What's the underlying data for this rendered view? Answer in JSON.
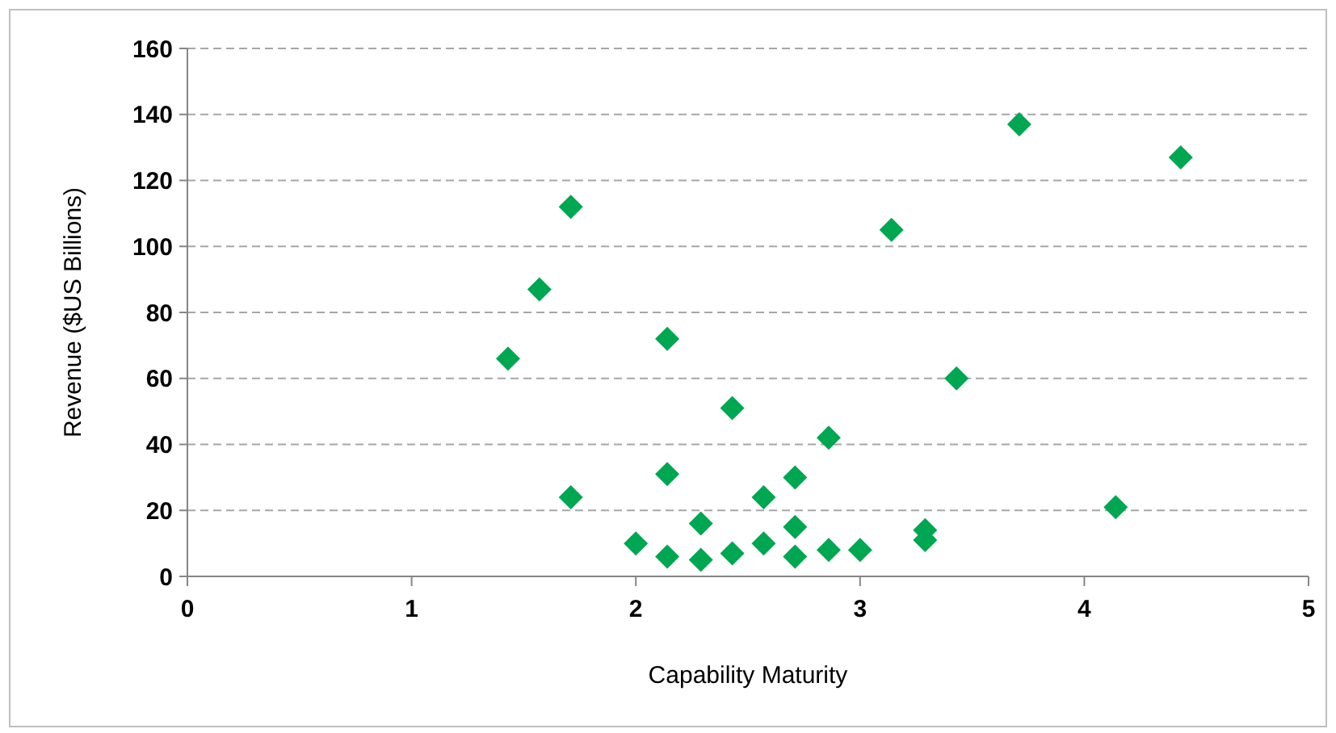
{
  "chart_data": {
    "type": "scatter",
    "xlabel": "Capability Maturity",
    "ylabel": "Revenue ($US Billions)",
    "xlim": [
      0,
      5
    ],
    "xticks": [
      0,
      1,
      2,
      3,
      4,
      5
    ],
    "ylim": [
      0,
      160
    ],
    "yticks": [
      0,
      20,
      40,
      60,
      80,
      100,
      120,
      140,
      160
    ],
    "grid": "y",
    "marker": "diamond",
    "series": [
      {
        "color": "#00a651",
        "x": [
          1.43,
          1.57,
          1.71,
          1.71,
          2.0,
          2.14,
          2.14,
          2.14,
          2.29,
          2.29,
          2.43,
          2.43,
          2.57,
          2.57,
          2.71,
          2.71,
          2.71,
          2.86,
          2.86,
          3.0,
          3.14,
          3.29,
          3.29,
          3.43,
          3.71,
          4.14,
          4.43
        ],
        "values": [
          66,
          87,
          112,
          24,
          10,
          6,
          72,
          31,
          16,
          5,
          51,
          7,
          24,
          10,
          30,
          15,
          6,
          42,
          8,
          8,
          105,
          14,
          11,
          60,
          137,
          21,
          127
        ]
      }
    ]
  }
}
